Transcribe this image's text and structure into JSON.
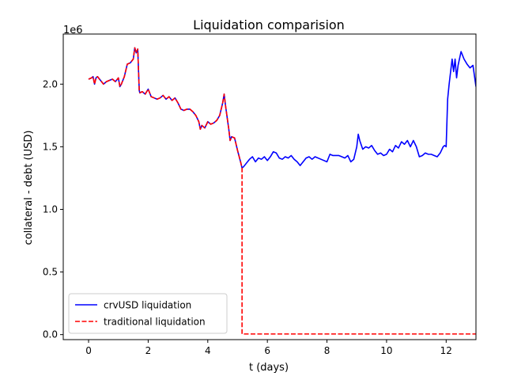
{
  "chart_data": {
    "type": "line",
    "title": "Liquidation comparision",
    "xlabel": "t (days)",
    "ylabel": "collateral - debt (USD)",
    "y_offset_text": "1e6",
    "xlim": [
      -0.85,
      13.0
    ],
    "ylim": [
      -0.04,
      2.4
    ],
    "x_ticks": [
      0,
      2,
      4,
      6,
      8,
      10,
      12
    ],
    "x_tick_labels": [
      "0",
      "2",
      "4",
      "6",
      "8",
      "10",
      "12"
    ],
    "y_ticks": [
      0.0,
      0.5,
      1.0,
      1.5,
      2.0
    ],
    "y_tick_labels": [
      "0.0",
      "0.5",
      "1.0",
      "1.5",
      "2.0"
    ],
    "y_unit_multiplier": 1000000,
    "grid": false,
    "legend_position": "lower-left",
    "series": [
      {
        "name": "crvUSD liquidation",
        "color": "#0000ff",
        "style": "solid",
        "x": [
          0.0,
          0.1,
          0.15,
          0.2,
          0.25,
          0.3,
          0.4,
          0.5,
          0.6,
          0.7,
          0.8,
          0.9,
          1.0,
          1.05,
          1.1,
          1.2,
          1.3,
          1.4,
          1.5,
          1.55,
          1.6,
          1.65,
          1.7,
          1.72,
          1.8,
          1.9,
          2.0,
          2.1,
          2.2,
          2.3,
          2.4,
          2.5,
          2.6,
          2.7,
          2.8,
          2.9,
          3.0,
          3.1,
          3.2,
          3.3,
          3.4,
          3.5,
          3.6,
          3.7,
          3.75,
          3.8,
          3.9,
          4.0,
          4.1,
          4.2,
          4.3,
          4.4,
          4.5,
          4.55,
          4.6,
          4.7,
          4.75,
          4.8,
          4.9,
          5.0,
          5.1,
          5.15,
          5.2,
          5.3,
          5.4,
          5.5,
          5.6,
          5.7,
          5.8,
          5.9,
          6.0,
          6.1,
          6.2,
          6.3,
          6.4,
          6.5,
          6.6,
          6.7,
          6.8,
          6.9,
          7.0,
          7.1,
          7.2,
          7.3,
          7.4,
          7.5,
          7.6,
          7.8,
          8.0,
          8.1,
          8.2,
          8.3,
          8.4,
          8.5,
          8.6,
          8.7,
          8.8,
          8.9,
          9.0,
          9.05,
          9.1,
          9.2,
          9.3,
          9.4,
          9.5,
          9.6,
          9.7,
          9.8,
          9.9,
          10.0,
          10.1,
          10.2,
          10.3,
          10.4,
          10.5,
          10.6,
          10.7,
          10.8,
          10.9,
          11.0,
          11.1,
          11.2,
          11.3,
          11.4,
          11.5,
          11.6,
          11.7,
          11.8,
          11.9,
          11.95,
          12.0,
          12.05,
          12.1,
          12.2,
          12.25,
          12.3,
          12.35,
          12.4,
          12.5,
          12.6,
          12.7,
          12.8,
          12.9,
          13.0
        ],
        "y": [
          2.04,
          2.05,
          2.06,
          2.0,
          2.05,
          2.06,
          2.03,
          2.0,
          2.02,
          2.03,
          2.04,
          2.02,
          2.05,
          1.98,
          2.0,
          2.06,
          2.16,
          2.17,
          2.2,
          2.29,
          2.25,
          2.28,
          1.95,
          1.93,
          1.94,
          1.92,
          1.96,
          1.9,
          1.89,
          1.88,
          1.89,
          1.91,
          1.88,
          1.9,
          1.87,
          1.89,
          1.85,
          1.8,
          1.79,
          1.8,
          1.8,
          1.78,
          1.75,
          1.7,
          1.64,
          1.67,
          1.65,
          1.7,
          1.68,
          1.69,
          1.71,
          1.75,
          1.85,
          1.92,
          1.82,
          1.65,
          1.55,
          1.58,
          1.57,
          1.47,
          1.38,
          1.33,
          1.34,
          1.37,
          1.4,
          1.42,
          1.38,
          1.41,
          1.4,
          1.42,
          1.39,
          1.42,
          1.46,
          1.45,
          1.41,
          1.4,
          1.42,
          1.41,
          1.43,
          1.4,
          1.38,
          1.35,
          1.38,
          1.41,
          1.42,
          1.4,
          1.42,
          1.4,
          1.38,
          1.44,
          1.43,
          1.43,
          1.43,
          1.42,
          1.41,
          1.43,
          1.38,
          1.4,
          1.5,
          1.6,
          1.55,
          1.48,
          1.5,
          1.49,
          1.51,
          1.47,
          1.44,
          1.45,
          1.43,
          1.44,
          1.48,
          1.46,
          1.51,
          1.49,
          1.54,
          1.52,
          1.55,
          1.5,
          1.55,
          1.5,
          1.42,
          1.43,
          1.45,
          1.44,
          1.44,
          1.43,
          1.42,
          1.45,
          1.5,
          1.51,
          1.5,
          1.88,
          2.0,
          2.2,
          2.1,
          2.2,
          2.05,
          2.15,
          2.26,
          2.2,
          2.16,
          2.13,
          2.15,
          1.98
        ]
      },
      {
        "name": "traditional liquidation",
        "color": "#ff0000",
        "style": "dashed",
        "x": [
          0.0,
          0.1,
          0.15,
          0.2,
          0.25,
          0.3,
          0.4,
          0.5,
          0.6,
          0.7,
          0.8,
          0.9,
          1.0,
          1.05,
          1.1,
          1.2,
          1.3,
          1.4,
          1.5,
          1.55,
          1.6,
          1.65,
          1.7,
          1.72,
          1.8,
          1.9,
          2.0,
          2.1,
          2.2,
          2.3,
          2.4,
          2.5,
          2.6,
          2.7,
          2.8,
          2.9,
          3.0,
          3.1,
          3.2,
          3.3,
          3.4,
          3.5,
          3.6,
          3.7,
          3.75,
          3.8,
          3.9,
          4.0,
          4.1,
          4.2,
          4.3,
          4.4,
          4.5,
          4.55,
          4.6,
          4.7,
          4.75,
          4.8,
          4.9,
          5.0,
          5.1,
          5.15,
          5.15,
          13.0
        ],
        "y": [
          2.04,
          2.05,
          2.06,
          2.0,
          2.05,
          2.06,
          2.03,
          2.0,
          2.02,
          2.03,
          2.04,
          2.02,
          2.05,
          1.98,
          2.0,
          2.06,
          2.16,
          2.17,
          2.2,
          2.29,
          2.25,
          2.28,
          1.95,
          1.93,
          1.94,
          1.92,
          1.96,
          1.9,
          1.89,
          1.88,
          1.89,
          1.91,
          1.88,
          1.9,
          1.87,
          1.89,
          1.85,
          1.8,
          1.79,
          1.8,
          1.8,
          1.78,
          1.75,
          1.7,
          1.64,
          1.67,
          1.65,
          1.7,
          1.68,
          1.69,
          1.71,
          1.75,
          1.85,
          1.92,
          1.82,
          1.65,
          1.55,
          1.58,
          1.57,
          1.47,
          1.38,
          1.33,
          0.005,
          0.005
        ]
      }
    ]
  }
}
